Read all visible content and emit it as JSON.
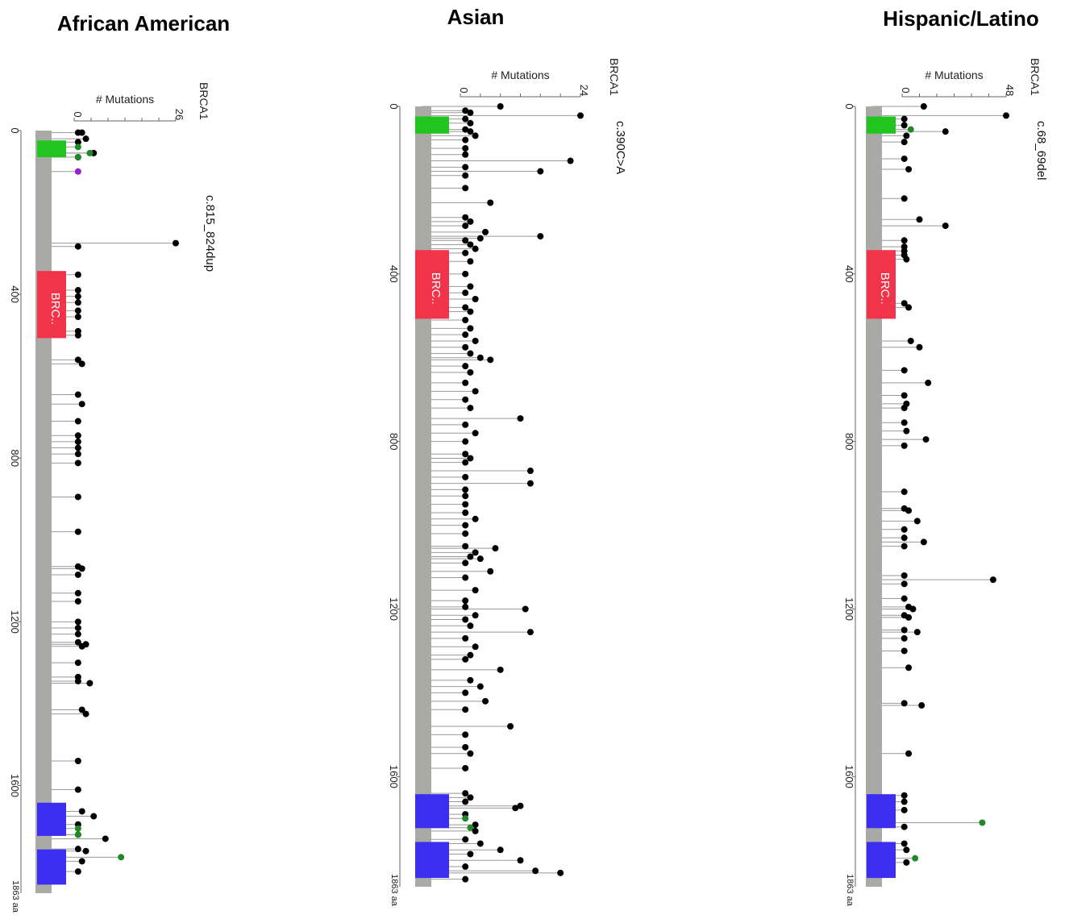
{
  "figure": {
    "y_label": "# Mutations",
    "gene": "BRCA1",
    "length_label": "1863 aa",
    "protein_length": 1863,
    "axis_ticks": [
      "0",
      "400",
      "800",
      "1200",
      "1600"
    ],
    "colors": {
      "backbone": "#a9a9a5",
      "ring_domain": "#22c51f",
      "brct_like_domain": "#f2344a",
      "brct_domain": "#3c2ef0",
      "mutation_truncating": "#000000",
      "mutation_missense": "#21882a",
      "mutation_other": "#9b1fd1",
      "stem_line": "#999999"
    }
  },
  "chart_data": [
    {
      "type": "lollipop",
      "title": "African American",
      "ylabel": "# Mutations",
      "gene": "BRCA1",
      "protein_length": 1863,
      "count_axis": {
        "min_label": "0",
        "max_label": "26",
        "max": 26
      },
      "hotspot_label": "c.815_824dup",
      "domains": [
        {
          "label": "",
          "start": 24,
          "end": 65,
          "color": "#22c51f"
        },
        {
          "label": "BRC..",
          "start": 343,
          "end": 507,
          "color": "#f2344a"
        },
        {
          "label": "",
          "start": 1642,
          "end": 1723,
          "color": "#3c2ef0"
        },
        {
          "label": "",
          "start": 1756,
          "end": 1842,
          "color": "#3c2ef0"
        }
      ],
      "mutations": [
        {
          "pos": 5,
          "count": 1
        },
        {
          "pos": 5,
          "count": 2
        },
        {
          "pos": 20,
          "count": 3
        },
        {
          "pos": 28,
          "count": 1
        },
        {
          "pos": 40,
          "count": 1,
          "class": "missense"
        },
        {
          "pos": 55,
          "count": 5
        },
        {
          "pos": 55,
          "count": 4,
          "class": "missense"
        },
        {
          "pos": 65,
          "count": 1
        },
        {
          "pos": 65,
          "count": 1,
          "class": "missense"
        },
        {
          "pos": 100,
          "count": 1,
          "class": "other"
        },
        {
          "pos": 275,
          "count": 26
        },
        {
          "pos": 283,
          "count": 1
        },
        {
          "pos": 352,
          "count": 1
        },
        {
          "pos": 390,
          "count": 1
        },
        {
          "pos": 405,
          "count": 1
        },
        {
          "pos": 420,
          "count": 1
        },
        {
          "pos": 440,
          "count": 1
        },
        {
          "pos": 455,
          "count": 1
        },
        {
          "pos": 490,
          "count": 1
        },
        {
          "pos": 500,
          "count": 1
        },
        {
          "pos": 560,
          "count": 1
        },
        {
          "pos": 570,
          "count": 2
        },
        {
          "pos": 645,
          "count": 1
        },
        {
          "pos": 668,
          "count": 2
        },
        {
          "pos": 710,
          "count": 1
        },
        {
          "pos": 745,
          "count": 1
        },
        {
          "pos": 760,
          "count": 1
        },
        {
          "pos": 775,
          "count": 1
        },
        {
          "pos": 790,
          "count": 1
        },
        {
          "pos": 812,
          "count": 1
        },
        {
          "pos": 895,
          "count": 1
        },
        {
          "pos": 980,
          "count": 1
        },
        {
          "pos": 1065,
          "count": 1
        },
        {
          "pos": 1070,
          "count": 2
        },
        {
          "pos": 1085,
          "count": 1
        },
        {
          "pos": 1130,
          "count": 1
        },
        {
          "pos": 1150,
          "count": 1
        },
        {
          "pos": 1200,
          "count": 1
        },
        {
          "pos": 1215,
          "count": 1
        },
        {
          "pos": 1230,
          "count": 1
        },
        {
          "pos": 1250,
          "count": 1
        },
        {
          "pos": 1255,
          "count": 3
        },
        {
          "pos": 1260,
          "count": 2
        },
        {
          "pos": 1300,
          "count": 1
        },
        {
          "pos": 1335,
          "count": 1
        },
        {
          "pos": 1345,
          "count": 1
        },
        {
          "pos": 1350,
          "count": 4
        },
        {
          "pos": 1415,
          "count": 2
        },
        {
          "pos": 1425,
          "count": 3
        },
        {
          "pos": 1540,
          "count": 1
        },
        {
          "pos": 1610,
          "count": 1
        },
        {
          "pos": 1663,
          "count": 2
        },
        {
          "pos": 1675,
          "count": 5
        },
        {
          "pos": 1695,
          "count": 1
        },
        {
          "pos": 1705,
          "count": 1,
          "class": "missense"
        },
        {
          "pos": 1720,
          "count": 1
        },
        {
          "pos": 1720,
          "count": 1,
          "class": "missense"
        },
        {
          "pos": 1730,
          "count": 8
        },
        {
          "pos": 1755,
          "count": 1
        },
        {
          "pos": 1760,
          "count": 3
        },
        {
          "pos": 1775,
          "count": 12,
          "class": "missense"
        },
        {
          "pos": 1785,
          "count": 2
        },
        {
          "pos": 1810,
          "count": 1
        }
      ]
    },
    {
      "type": "lollipop",
      "title": "Asian",
      "ylabel": "# Mutations",
      "gene": "BRCA1",
      "protein_length": 1863,
      "count_axis": {
        "min_label": "0",
        "max_label": "24",
        "max": 24
      },
      "hotspot_label": "c.390C>A",
      "domains": [
        {
          "label": "",
          "start": 24,
          "end": 65,
          "color": "#22c51f"
        },
        {
          "label": "BRC..",
          "start": 343,
          "end": 507,
          "color": "#f2344a"
        },
        {
          "label": "",
          "start": 1642,
          "end": 1723,
          "color": "#3c2ef0"
        },
        {
          "label": "",
          "start": 1756,
          "end": 1842,
          "color": "#3c2ef0"
        }
      ],
      "mutations": [
        {
          "pos": 0,
          "count": 8
        },
        {
          "pos": 10,
          "count": 1
        },
        {
          "pos": 15,
          "count": 2
        },
        {
          "pos": 22,
          "count": 24
        },
        {
          "pos": 30,
          "count": 1
        },
        {
          "pos": 40,
          "count": 2
        },
        {
          "pos": 55,
          "count": 1
        },
        {
          "pos": 60,
          "count": 2
        },
        {
          "pos": 70,
          "count": 3
        },
        {
          "pos": 80,
          "count": 1
        },
        {
          "pos": 100,
          "count": 1
        },
        {
          "pos": 115,
          "count": 1
        },
        {
          "pos": 130,
          "count": 22
        },
        {
          "pos": 145,
          "count": 1
        },
        {
          "pos": 155,
          "count": 16
        },
        {
          "pos": 165,
          "count": 1
        },
        {
          "pos": 195,
          "count": 1
        },
        {
          "pos": 230,
          "count": 6
        },
        {
          "pos": 265,
          "count": 1
        },
        {
          "pos": 275,
          "count": 2
        },
        {
          "pos": 285,
          "count": 1
        },
        {
          "pos": 300,
          "count": 5
        },
        {
          "pos": 310,
          "count": 16
        },
        {
          "pos": 315,
          "count": 4
        },
        {
          "pos": 320,
          "count": 1
        },
        {
          "pos": 330,
          "count": 2
        },
        {
          "pos": 340,
          "count": 3
        },
        {
          "pos": 350,
          "count": 1
        },
        {
          "pos": 370,
          "count": 2
        },
        {
          "pos": 400,
          "count": 1
        },
        {
          "pos": 430,
          "count": 2
        },
        {
          "pos": 445,
          "count": 1
        },
        {
          "pos": 460,
          "count": 3
        },
        {
          "pos": 480,
          "count": 1
        },
        {
          "pos": 490,
          "count": 2
        },
        {
          "pos": 510,
          "count": 1
        },
        {
          "pos": 530,
          "count": 2
        },
        {
          "pos": 545,
          "count": 1
        },
        {
          "pos": 560,
          "count": 3
        },
        {
          "pos": 575,
          "count": 1
        },
        {
          "pos": 590,
          "count": 2
        },
        {
          "pos": 600,
          "count": 4
        },
        {
          "pos": 605,
          "count": 6
        },
        {
          "pos": 620,
          "count": 1
        },
        {
          "pos": 635,
          "count": 2
        },
        {
          "pos": 660,
          "count": 1
        },
        {
          "pos": 680,
          "count": 3
        },
        {
          "pos": 700,
          "count": 1
        },
        {
          "pos": 720,
          "count": 2
        },
        {
          "pos": 745,
          "count": 12
        },
        {
          "pos": 760,
          "count": 1
        },
        {
          "pos": 780,
          "count": 3
        },
        {
          "pos": 800,
          "count": 1
        },
        {
          "pos": 830,
          "count": 1
        },
        {
          "pos": 840,
          "count": 2
        },
        {
          "pos": 850,
          "count": 1
        },
        {
          "pos": 870,
          "count": 14
        },
        {
          "pos": 885,
          "count": 1
        },
        {
          "pos": 900,
          "count": 14
        },
        {
          "pos": 915,
          "count": 1
        },
        {
          "pos": 930,
          "count": 1
        },
        {
          "pos": 950,
          "count": 1
        },
        {
          "pos": 970,
          "count": 1
        },
        {
          "pos": 985,
          "count": 3
        },
        {
          "pos": 1000,
          "count": 1
        },
        {
          "pos": 1020,
          "count": 1
        },
        {
          "pos": 1050,
          "count": 1
        },
        {
          "pos": 1055,
          "count": 7
        },
        {
          "pos": 1065,
          "count": 3
        },
        {
          "pos": 1075,
          "count": 2
        },
        {
          "pos": 1080,
          "count": 4
        },
        {
          "pos": 1090,
          "count": 1
        },
        {
          "pos": 1110,
          "count": 6
        },
        {
          "pos": 1125,
          "count": 1
        },
        {
          "pos": 1155,
          "count": 3
        },
        {
          "pos": 1180,
          "count": 1
        },
        {
          "pos": 1195,
          "count": 1
        },
        {
          "pos": 1200,
          "count": 13
        },
        {
          "pos": 1215,
          "count": 3
        },
        {
          "pos": 1225,
          "count": 1
        },
        {
          "pos": 1240,
          "count": 2
        },
        {
          "pos": 1255,
          "count": 14
        },
        {
          "pos": 1270,
          "count": 1
        },
        {
          "pos": 1290,
          "count": 3
        },
        {
          "pos": 1310,
          "count": 2
        },
        {
          "pos": 1320,
          "count": 1
        },
        {
          "pos": 1345,
          "count": 8
        },
        {
          "pos": 1370,
          "count": 2
        },
        {
          "pos": 1385,
          "count": 4
        },
        {
          "pos": 1400,
          "count": 1
        },
        {
          "pos": 1420,
          "count": 5
        },
        {
          "pos": 1440,
          "count": 1
        },
        {
          "pos": 1480,
          "count": 10
        },
        {
          "pos": 1500,
          "count": 1
        },
        {
          "pos": 1530,
          "count": 1
        },
        {
          "pos": 1545,
          "count": 2
        },
        {
          "pos": 1580,
          "count": 1
        },
        {
          "pos": 1640,
          "count": 1
        },
        {
          "pos": 1650,
          "count": 2
        },
        {
          "pos": 1660,
          "count": 1
        },
        {
          "pos": 1670,
          "count": 12
        },
        {
          "pos": 1675,
          "count": 11
        },
        {
          "pos": 1690,
          "count": 1
        },
        {
          "pos": 1700,
          "count": 1,
          "class": "missense"
        },
        {
          "pos": 1715,
          "count": 3
        },
        {
          "pos": 1722,
          "count": 2,
          "class": "missense"
        },
        {
          "pos": 1730,
          "count": 3
        },
        {
          "pos": 1750,
          "count": 1
        },
        {
          "pos": 1760,
          "count": 4
        },
        {
          "pos": 1775,
          "count": 8
        },
        {
          "pos": 1785,
          "count": 2
        },
        {
          "pos": 1800,
          "count": 12
        },
        {
          "pos": 1815,
          "count": 1
        },
        {
          "pos": 1825,
          "count": 15
        },
        {
          "pos": 1830,
          "count": 20
        },
        {
          "pos": 1845,
          "count": 1
        }
      ]
    },
    {
      "type": "lollipop",
      "title": "Hispanic/Latino",
      "ylabel": "# Mutations",
      "gene": "BRCA1",
      "protein_length": 1863,
      "count_axis": {
        "min_label": "0",
        "max_label": "48",
        "max": 48
      },
      "hotspot_label": "c.68_69del",
      "domains": [
        {
          "label": "",
          "start": 24,
          "end": 65,
          "color": "#22c51f"
        },
        {
          "label": "BRC..",
          "start": 343,
          "end": 507,
          "color": "#f2344a"
        },
        {
          "label": "",
          "start": 1642,
          "end": 1723,
          "color": "#3c2ef0"
        },
        {
          "label": "",
          "start": 1756,
          "end": 1842,
          "color": "#3c2ef0"
        }
      ],
      "mutations": [
        {
          "pos": 0,
          "count": 10
        },
        {
          "pos": 22,
          "count": 48
        },
        {
          "pos": 30,
          "count": 1
        },
        {
          "pos": 45,
          "count": 1
        },
        {
          "pos": 55,
          "count": 4,
          "class": "missense"
        },
        {
          "pos": 60,
          "count": 20
        },
        {
          "pos": 70,
          "count": 2
        },
        {
          "pos": 85,
          "count": 1
        },
        {
          "pos": 125,
          "count": 1
        },
        {
          "pos": 150,
          "count": 3
        },
        {
          "pos": 220,
          "count": 1
        },
        {
          "pos": 270,
          "count": 8
        },
        {
          "pos": 285,
          "count": 20
        },
        {
          "pos": 320,
          "count": 1
        },
        {
          "pos": 335,
          "count": 1
        },
        {
          "pos": 345,
          "count": 1
        },
        {
          "pos": 355,
          "count": 1
        },
        {
          "pos": 365,
          "count": 2
        },
        {
          "pos": 470,
          "count": 1
        },
        {
          "pos": 480,
          "count": 3
        },
        {
          "pos": 560,
          "count": 4
        },
        {
          "pos": 575,
          "count": 8
        },
        {
          "pos": 630,
          "count": 1
        },
        {
          "pos": 660,
          "count": 12
        },
        {
          "pos": 690,
          "count": 1
        },
        {
          "pos": 710,
          "count": 2
        },
        {
          "pos": 720,
          "count": 1
        },
        {
          "pos": 755,
          "count": 1
        },
        {
          "pos": 775,
          "count": 2
        },
        {
          "pos": 795,
          "count": 11
        },
        {
          "pos": 810,
          "count": 1
        },
        {
          "pos": 920,
          "count": 1
        },
        {
          "pos": 960,
          "count": 1
        },
        {
          "pos": 965,
          "count": 3
        },
        {
          "pos": 990,
          "count": 7
        },
        {
          "pos": 1010,
          "count": 1
        },
        {
          "pos": 1030,
          "count": 1
        },
        {
          "pos": 1040,
          "count": 10
        },
        {
          "pos": 1050,
          "count": 1
        },
        {
          "pos": 1120,
          "count": 1
        },
        {
          "pos": 1130,
          "count": 42
        },
        {
          "pos": 1140,
          "count": 1
        },
        {
          "pos": 1175,
          "count": 1
        },
        {
          "pos": 1195,
          "count": 3
        },
        {
          "pos": 1200,
          "count": 5
        },
        {
          "pos": 1215,
          "count": 1
        },
        {
          "pos": 1220,
          "count": 3
        },
        {
          "pos": 1250,
          "count": 1
        },
        {
          "pos": 1255,
          "count": 7
        },
        {
          "pos": 1270,
          "count": 1
        },
        {
          "pos": 1300,
          "count": 1
        },
        {
          "pos": 1340,
          "count": 3
        },
        {
          "pos": 1425,
          "count": 1
        },
        {
          "pos": 1430,
          "count": 9
        },
        {
          "pos": 1545,
          "count": 3
        },
        {
          "pos": 1645,
          "count": 1
        },
        {
          "pos": 1660,
          "count": 1
        },
        {
          "pos": 1680,
          "count": 1
        },
        {
          "pos": 1710,
          "count": 37,
          "class": "missense"
        },
        {
          "pos": 1720,
          "count": 1
        },
        {
          "pos": 1760,
          "count": 1
        },
        {
          "pos": 1775,
          "count": 2
        },
        {
          "pos": 1795,
          "count": 6,
          "class": "missense"
        },
        {
          "pos": 1805,
          "count": 2
        }
      ]
    }
  ]
}
